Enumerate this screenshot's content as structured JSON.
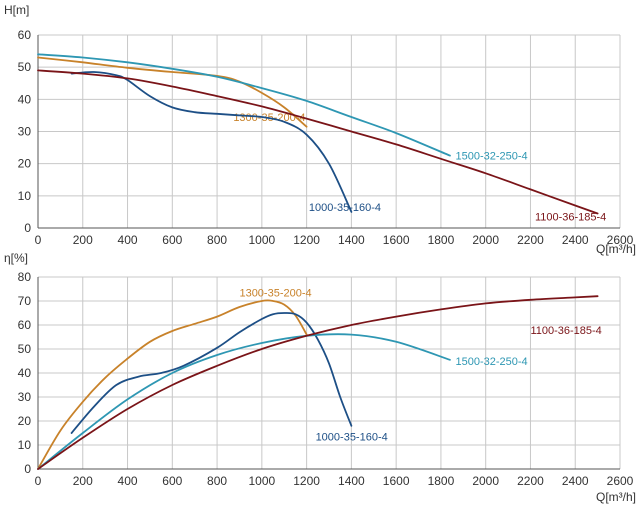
{
  "chart_data": [
    {
      "type": "line",
      "ylabel": "H[m]",
      "xlabel": "Q[m³/h]",
      "xlim": [
        0,
        2600
      ],
      "ylim": [
        0,
        60
      ],
      "xticks": [
        0,
        200,
        400,
        600,
        800,
        1000,
        1200,
        1400,
        1600,
        1800,
        2000,
        2200,
        2400,
        2600
      ],
      "yticks": [
        0,
        10,
        20,
        30,
        40,
        50,
        60
      ],
      "grid": true,
      "series": [
        {
          "name": "1300-35-200-4",
          "color": "#c8822a",
          "label_at": [
            1195,
            34.5
          ],
          "label_anchor": "end",
          "x": [
            0,
            200,
            400,
            600,
            800,
            900,
            1000,
            1100,
            1200
          ],
          "y": [
            53,
            51.5,
            49.8,
            48.5,
            47.3,
            45.5,
            42,
            37.5,
            31.5
          ]
        },
        {
          "name": "1000-35-160-4",
          "color": "#1d4f86",
          "label_at": [
            1210,
            6.5
          ],
          "label_anchor": "start",
          "x": [
            150,
            250,
            350,
            400,
            500,
            600,
            700,
            800,
            900,
            1000,
            1100,
            1200,
            1300,
            1400
          ],
          "y": [
            48,
            48.5,
            47.5,
            46,
            41,
            37.5,
            36,
            35.5,
            35,
            34.5,
            33,
            29,
            20,
            5
          ]
        },
        {
          "name": "1500-32-250-4",
          "color": "#2e97b3",
          "label_at": [
            1865,
            22.5
          ],
          "label_anchor": "start",
          "x": [
            0,
            200,
            400,
            600,
            800,
            1000,
            1200,
            1400,
            1600,
            1840
          ],
          "y": [
            54,
            53,
            51.5,
            49.5,
            47,
            43.5,
            39.5,
            34.5,
            29.5,
            22.5
          ]
        },
        {
          "name": "1100-36-185-4",
          "color": "#7a1418",
          "label_at": [
            2220,
            3.5
          ],
          "label_anchor": "start",
          "x": [
            0,
            200,
            400,
            600,
            800,
            1000,
            1200,
            1400,
            1600,
            1800,
            2000,
            2200,
            2400,
            2500
          ],
          "y": [
            49,
            48,
            46.5,
            44,
            41,
            37.8,
            34,
            30,
            26,
            21.5,
            17,
            12,
            7,
            4.5
          ]
        }
      ]
    },
    {
      "type": "line",
      "ylabel": "η[%]",
      "xlabel": "Q[m³/h]",
      "xlim": [
        0,
        2600
      ],
      "ylim": [
        0,
        80
      ],
      "xticks": [
        0,
        200,
        400,
        600,
        800,
        1000,
        1200,
        1400,
        1600,
        1800,
        2000,
        2200,
        2400,
        2600
      ],
      "yticks": [
        0,
        10,
        20,
        30,
        40,
        50,
        60,
        70,
        80
      ],
      "grid": true,
      "series": [
        {
          "name": "1300-35-200-4",
          "color": "#c8822a",
          "label_at": [
            900,
            73.5
          ],
          "label_anchor": "start",
          "x": [
            0,
            100,
            200,
            300,
            400,
            500,
            600,
            700,
            800,
            900,
            1000,
            1050,
            1100,
            1150,
            1200
          ],
          "y": [
            0,
            16,
            28,
            38,
            46,
            53,
            57.5,
            60.5,
            63.5,
            67.5,
            70,
            70,
            68.5,
            64,
            56
          ]
        },
        {
          "name": "1000-35-160-4",
          "color": "#1d4f86",
          "label_at": [
            1240,
            13.5
          ],
          "label_anchor": "start",
          "x": [
            150,
            250,
            350,
            450,
            550,
            650,
            800,
            900,
            1000,
            1050,
            1100,
            1150,
            1200,
            1250,
            1300,
            1350,
            1400
          ],
          "y": [
            15,
            26,
            35,
            38.5,
            40,
            43,
            50.5,
            57,
            62.5,
            64.5,
            65,
            64.5,
            61,
            54,
            44,
            30,
            18
          ]
        },
        {
          "name": "1500-32-250-4",
          "color": "#2e97b3",
          "label_at": [
            1865,
            45
          ],
          "label_anchor": "start",
          "x": [
            0,
            200,
            400,
            600,
            800,
            1000,
            1200,
            1400,
            1600,
            1840
          ],
          "y": [
            0,
            15,
            29,
            40,
            47.5,
            52.5,
            55.5,
            56,
            53,
            45.5
          ]
        },
        {
          "name": "1100-36-185-4",
          "color": "#7a1418",
          "label_at": [
            2200,
            58
          ],
          "label_anchor": "start",
          "x": [
            0,
            200,
            400,
            600,
            800,
            1000,
            1200,
            1400,
            1600,
            1800,
            2000,
            2200,
            2400,
            2500
          ],
          "y": [
            0,
            13,
            25,
            35,
            43,
            50,
            55.5,
            60,
            63.5,
            66.5,
            69,
            70.5,
            71.5,
            72
          ]
        }
      ]
    }
  ]
}
